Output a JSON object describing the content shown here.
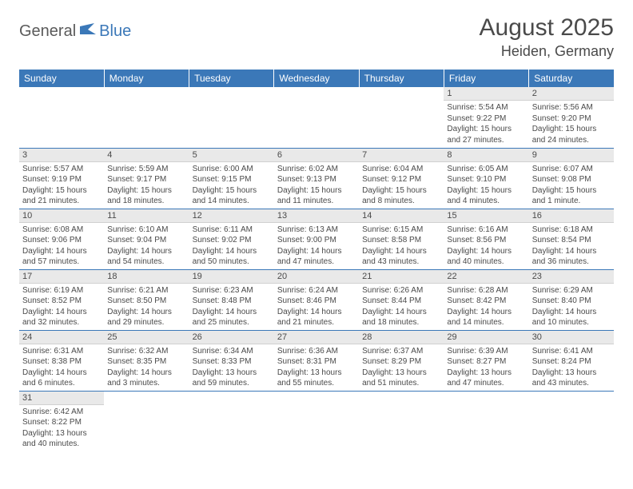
{
  "logo": {
    "text1": "General",
    "text2": "Blue"
  },
  "title": "August 2025",
  "location": "Heiden, Germany",
  "colors": {
    "header_bg": "#3b78b8",
    "header_text": "#ffffff",
    "daynum_bg": "#e9e9e9",
    "text": "#4a4a4a",
    "row_border": "#3b78b8"
  },
  "weekdays": [
    "Sunday",
    "Monday",
    "Tuesday",
    "Wednesday",
    "Thursday",
    "Friday",
    "Saturday"
  ],
  "weeks": [
    [
      null,
      null,
      null,
      null,
      null,
      {
        "n": "1",
        "sr": "5:54 AM",
        "ss": "9:22 PM",
        "dl1": "15 hours",
        "dl2": "and 27 minutes."
      },
      {
        "n": "2",
        "sr": "5:56 AM",
        "ss": "9:20 PM",
        "dl1": "15 hours",
        "dl2": "and 24 minutes."
      }
    ],
    [
      {
        "n": "3",
        "sr": "5:57 AM",
        "ss": "9:19 PM",
        "dl1": "15 hours",
        "dl2": "and 21 minutes."
      },
      {
        "n": "4",
        "sr": "5:59 AM",
        "ss": "9:17 PM",
        "dl1": "15 hours",
        "dl2": "and 18 minutes."
      },
      {
        "n": "5",
        "sr": "6:00 AM",
        "ss": "9:15 PM",
        "dl1": "15 hours",
        "dl2": "and 14 minutes."
      },
      {
        "n": "6",
        "sr": "6:02 AM",
        "ss": "9:13 PM",
        "dl1": "15 hours",
        "dl2": "and 11 minutes."
      },
      {
        "n": "7",
        "sr": "6:04 AM",
        "ss": "9:12 PM",
        "dl1": "15 hours",
        "dl2": "and 8 minutes."
      },
      {
        "n": "8",
        "sr": "6:05 AM",
        "ss": "9:10 PM",
        "dl1": "15 hours",
        "dl2": "and 4 minutes."
      },
      {
        "n": "9",
        "sr": "6:07 AM",
        "ss": "9:08 PM",
        "dl1": "15 hours",
        "dl2": "and 1 minute."
      }
    ],
    [
      {
        "n": "10",
        "sr": "6:08 AM",
        "ss": "9:06 PM",
        "dl1": "14 hours",
        "dl2": "and 57 minutes."
      },
      {
        "n": "11",
        "sr": "6:10 AM",
        "ss": "9:04 PM",
        "dl1": "14 hours",
        "dl2": "and 54 minutes."
      },
      {
        "n": "12",
        "sr": "6:11 AM",
        "ss": "9:02 PM",
        "dl1": "14 hours",
        "dl2": "and 50 minutes."
      },
      {
        "n": "13",
        "sr": "6:13 AM",
        "ss": "9:00 PM",
        "dl1": "14 hours",
        "dl2": "and 47 minutes."
      },
      {
        "n": "14",
        "sr": "6:15 AM",
        "ss": "8:58 PM",
        "dl1": "14 hours",
        "dl2": "and 43 minutes."
      },
      {
        "n": "15",
        "sr": "6:16 AM",
        "ss": "8:56 PM",
        "dl1": "14 hours",
        "dl2": "and 40 minutes."
      },
      {
        "n": "16",
        "sr": "6:18 AM",
        "ss": "8:54 PM",
        "dl1": "14 hours",
        "dl2": "and 36 minutes."
      }
    ],
    [
      {
        "n": "17",
        "sr": "6:19 AM",
        "ss": "8:52 PM",
        "dl1": "14 hours",
        "dl2": "and 32 minutes."
      },
      {
        "n": "18",
        "sr": "6:21 AM",
        "ss": "8:50 PM",
        "dl1": "14 hours",
        "dl2": "and 29 minutes."
      },
      {
        "n": "19",
        "sr": "6:23 AM",
        "ss": "8:48 PM",
        "dl1": "14 hours",
        "dl2": "and 25 minutes."
      },
      {
        "n": "20",
        "sr": "6:24 AM",
        "ss": "8:46 PM",
        "dl1": "14 hours",
        "dl2": "and 21 minutes."
      },
      {
        "n": "21",
        "sr": "6:26 AM",
        "ss": "8:44 PM",
        "dl1": "14 hours",
        "dl2": "and 18 minutes."
      },
      {
        "n": "22",
        "sr": "6:28 AM",
        "ss": "8:42 PM",
        "dl1": "14 hours",
        "dl2": "and 14 minutes."
      },
      {
        "n": "23",
        "sr": "6:29 AM",
        "ss": "8:40 PM",
        "dl1": "14 hours",
        "dl2": "and 10 minutes."
      }
    ],
    [
      {
        "n": "24",
        "sr": "6:31 AM",
        "ss": "8:38 PM",
        "dl1": "14 hours",
        "dl2": "and 6 minutes."
      },
      {
        "n": "25",
        "sr": "6:32 AM",
        "ss": "8:35 PM",
        "dl1": "14 hours",
        "dl2": "and 3 minutes."
      },
      {
        "n": "26",
        "sr": "6:34 AM",
        "ss": "8:33 PM",
        "dl1": "13 hours",
        "dl2": "and 59 minutes."
      },
      {
        "n": "27",
        "sr": "6:36 AM",
        "ss": "8:31 PM",
        "dl1": "13 hours",
        "dl2": "and 55 minutes."
      },
      {
        "n": "28",
        "sr": "6:37 AM",
        "ss": "8:29 PM",
        "dl1": "13 hours",
        "dl2": "and 51 minutes."
      },
      {
        "n": "29",
        "sr": "6:39 AM",
        "ss": "8:27 PM",
        "dl1": "13 hours",
        "dl2": "and 47 minutes."
      },
      {
        "n": "30",
        "sr": "6:41 AM",
        "ss": "8:24 PM",
        "dl1": "13 hours",
        "dl2": "and 43 minutes."
      }
    ],
    [
      {
        "n": "31",
        "sr": "6:42 AM",
        "ss": "8:22 PM",
        "dl1": "13 hours",
        "dl2": "and 40 minutes."
      },
      null,
      null,
      null,
      null,
      null,
      null
    ]
  ],
  "labels": {
    "sunrise": "Sunrise:",
    "sunset": "Sunset:",
    "daylight": "Daylight:"
  }
}
